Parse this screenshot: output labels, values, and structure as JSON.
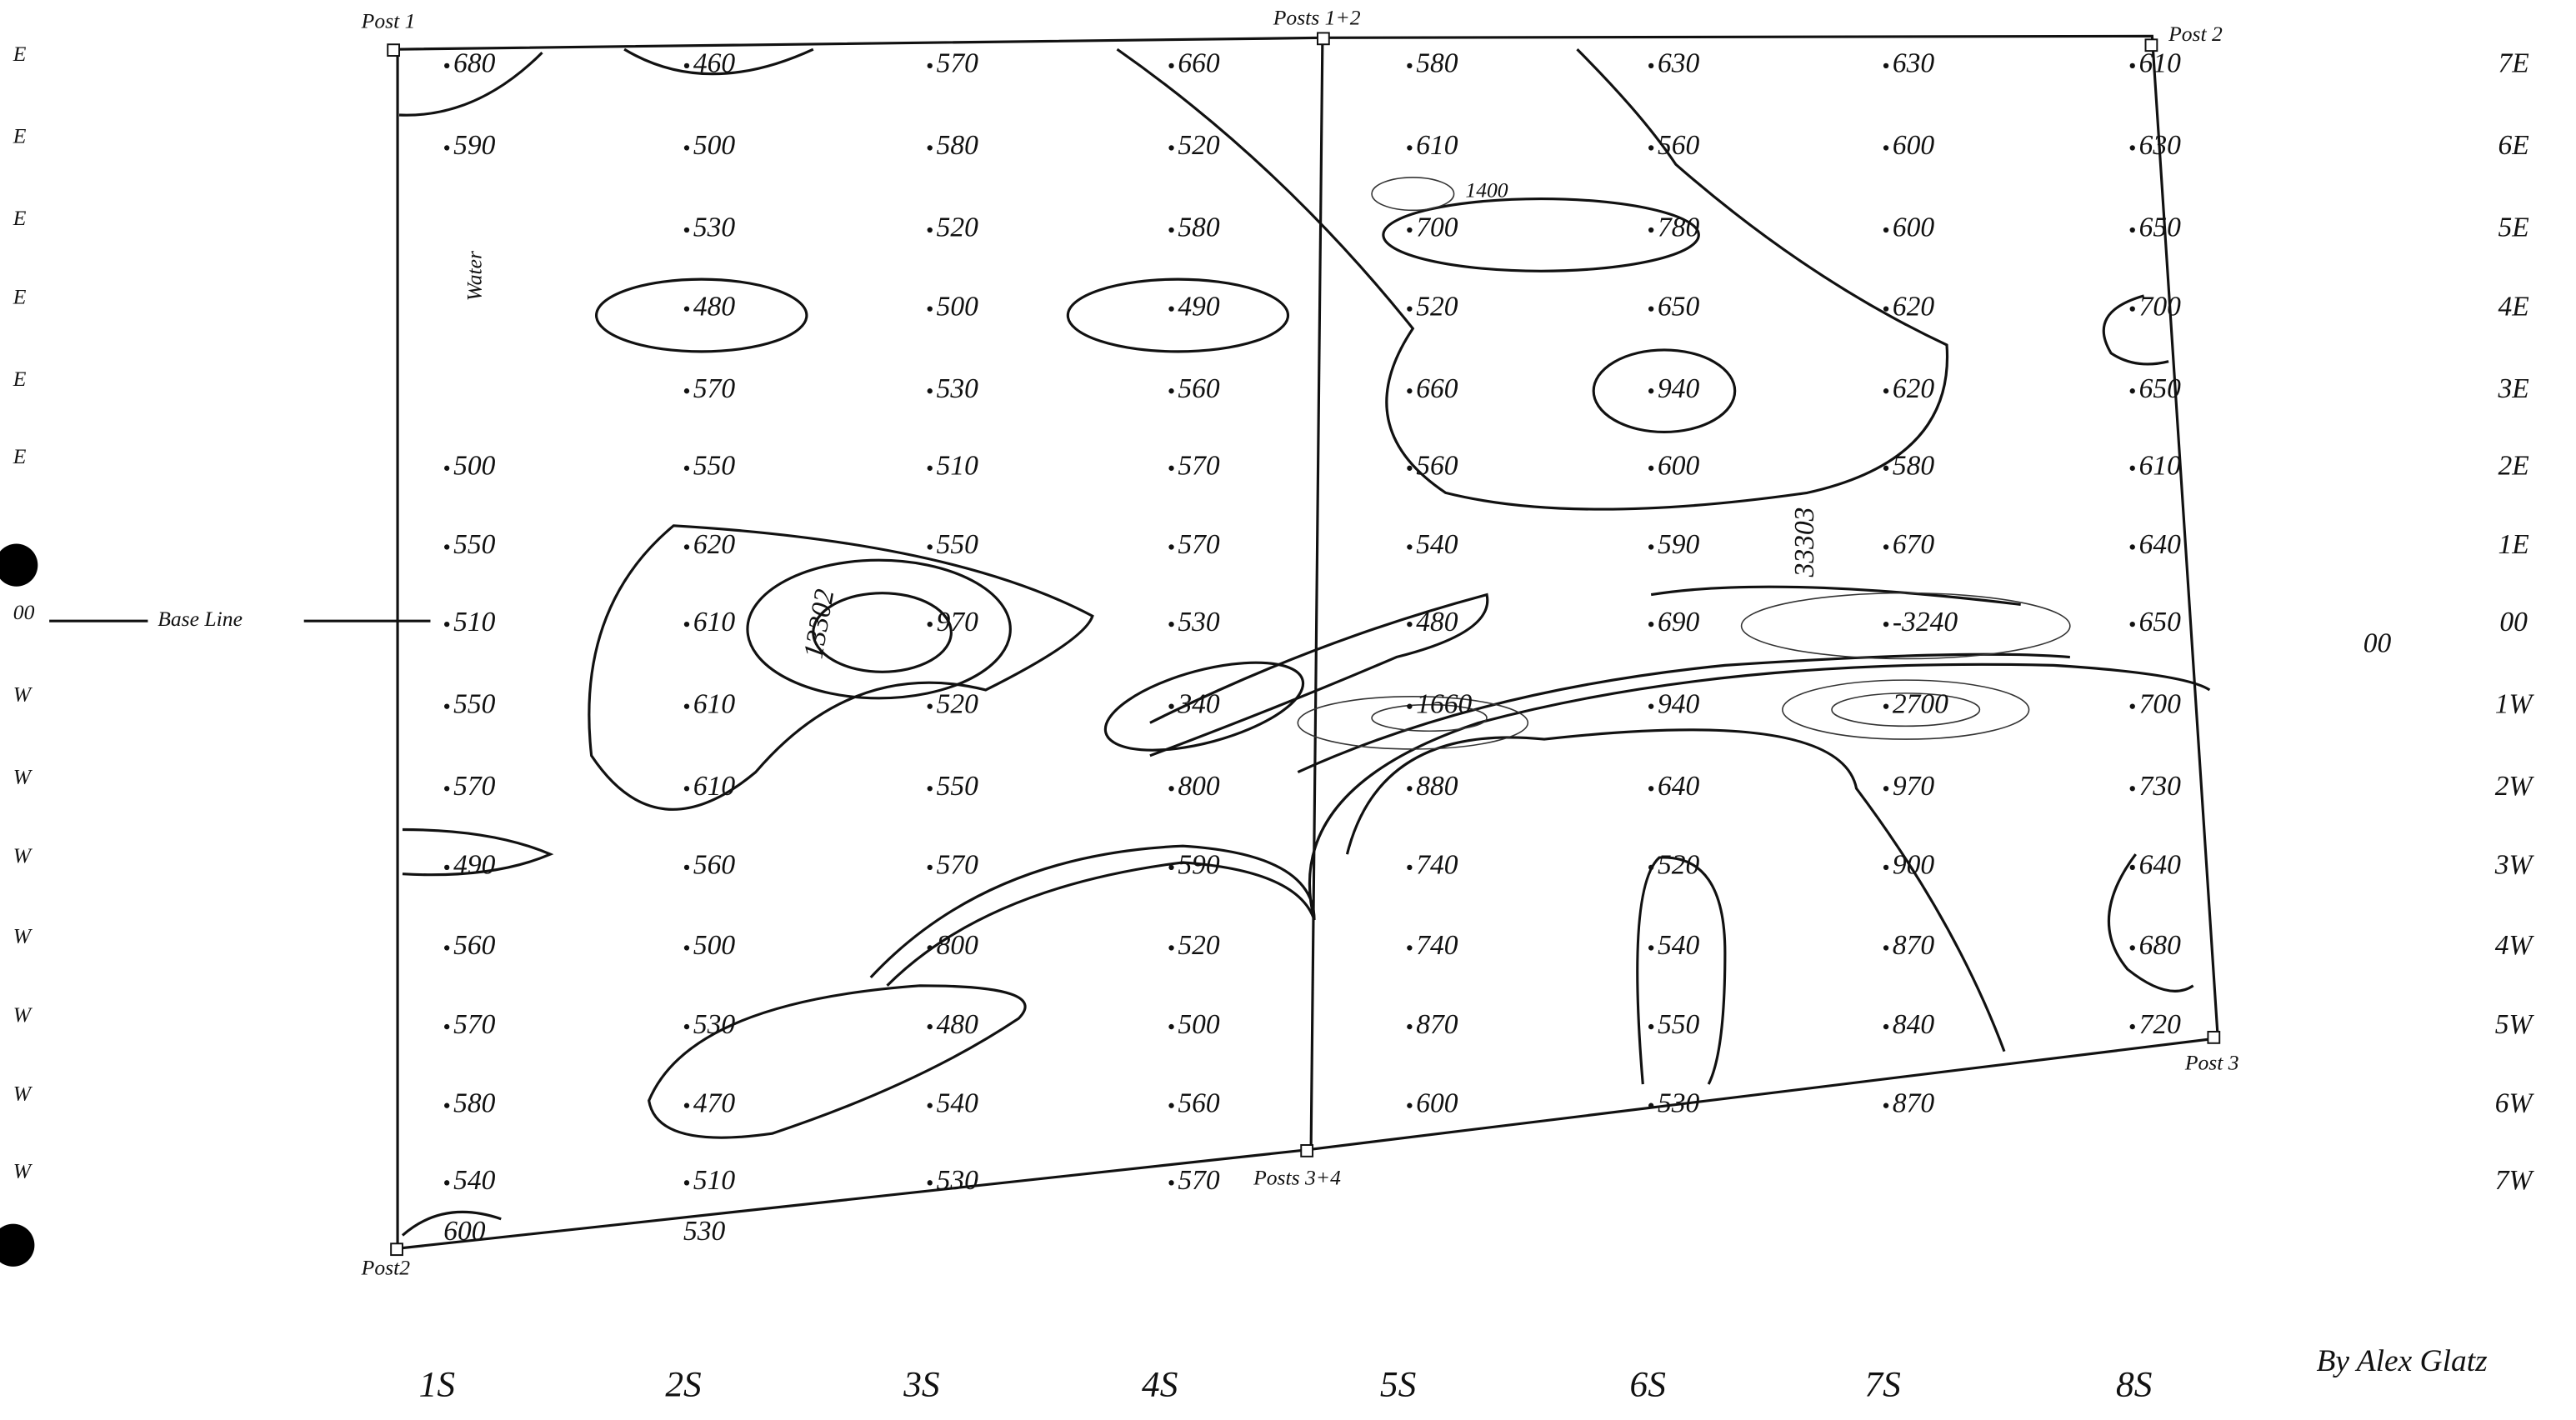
{
  "posts": {
    "post_1": "Post 1",
    "posts_1_2": "Posts 1+2",
    "post_2_top": "Post 2",
    "post_3": "Post 3",
    "posts_3_4": "Posts 3+4",
    "post_2_bottom": "Post2"
  },
  "annotations": {
    "water": "Water",
    "base_line": "Base Line",
    "line_a": "13302",
    "line_b": "33303",
    "spot": "1400",
    "author": "By Alex Glatz",
    "middle_zero": "00"
  },
  "left_labels": [
    "E",
    "E",
    "E",
    "E",
    "E",
    "E",
    "",
    "00",
    "W",
    "W",
    "W",
    "W",
    "W",
    "W",
    "W"
  ],
  "columns": [
    "1S",
    "2S",
    "3S",
    "4S",
    "5S",
    "6S",
    "7S",
    "8S"
  ],
  "rows": [
    {
      "label": "7E",
      "values": [
        680,
        460,
        570,
        660,
        580,
        630,
        630,
        610
      ]
    },
    {
      "label": "6E",
      "values": [
        590,
        500,
        580,
        520,
        610,
        560,
        600,
        630
      ]
    },
    {
      "label": "5E",
      "values": [
        null,
        530,
        520,
        580,
        700,
        780,
        600,
        650
      ]
    },
    {
      "label": "4E",
      "values": [
        null,
        480,
        500,
        490,
        520,
        650,
        620,
        700
      ]
    },
    {
      "label": "3E",
      "values": [
        null,
        570,
        530,
        560,
        660,
        940,
        620,
        650
      ]
    },
    {
      "label": "2E",
      "values": [
        500,
        550,
        510,
        570,
        560,
        600,
        580,
        610
      ]
    },
    {
      "label": "1E",
      "values": [
        550,
        620,
        550,
        570,
        540,
        590,
        670,
        640
      ]
    },
    {
      "label": "00",
      "values": [
        510,
        610,
        970,
        530,
        480,
        690,
        -3240,
        650
      ]
    },
    {
      "label": "1W",
      "values": [
        550,
        610,
        520,
        340,
        1660,
        940,
        2700,
        700
      ]
    },
    {
      "label": "2W",
      "values": [
        570,
        610,
        550,
        800,
        880,
        640,
        970,
        730
      ]
    },
    {
      "label": "3W",
      "values": [
        490,
        560,
        570,
        590,
        740,
        520,
        900,
        640
      ]
    },
    {
      "label": "4W",
      "values": [
        560,
        500,
        800,
        520,
        740,
        540,
        870,
        680
      ]
    },
    {
      "label": "5W",
      "values": [
        570,
        530,
        480,
        500,
        870,
        550,
        840,
        720
      ]
    },
    {
      "label": "6W",
      "values": [
        580,
        470,
        540,
        560,
        600,
        530,
        870,
        null
      ]
    },
    {
      "label": "7W",
      "values": [
        540,
        510,
        530,
        570,
        null,
        null,
        null,
        null
      ]
    }
  ],
  "extra_readings": [
    600,
    530
  ]
}
